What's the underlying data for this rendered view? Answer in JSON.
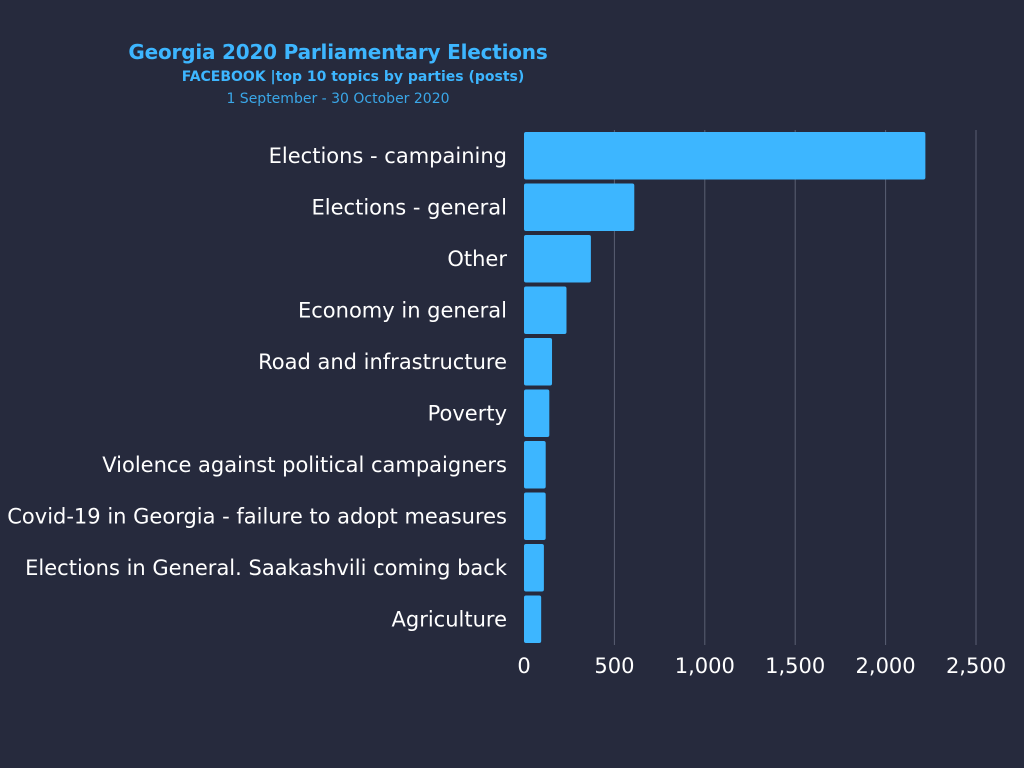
{
  "header": {
    "title": "Georgia 2020 Parliamentary Elections",
    "subtitle": "FACEBOOK |top 10 topics by parties (posts)",
    "date_range": "1 September - 30 October 2020"
  },
  "colors": {
    "background": "#262a3d",
    "bar": "#3db6ff",
    "grid": "#5a5f73",
    "text": "#ffffff",
    "title": "#3db6ff"
  },
  "chart_data": {
    "type": "bar",
    "orientation": "horizontal",
    "categories": [
      "Elections - campaining",
      "Elections - general",
      "Other",
      "Economy in general",
      "Road and infrastructure",
      "Poverty",
      "Violence against political campaigners",
      "Covid-19 in Georgia - failure to adopt measures",
      "Elections in General. Saakashvili coming back",
      "Agriculture"
    ],
    "values": [
      2220,
      610,
      370,
      235,
      155,
      140,
      120,
      120,
      110,
      95
    ],
    "xlim": [
      0,
      2500
    ],
    "ticks": [
      0,
      500,
      1000,
      1500,
      2000,
      2500
    ],
    "tick_labels": [
      "0",
      "500",
      "1,000",
      "1,500",
      "2,000",
      "2,500"
    ],
    "grid": true,
    "legend": "none",
    "title": "Georgia 2020 Parliamentary Elections",
    "xlabel": "",
    "ylabel": ""
  }
}
